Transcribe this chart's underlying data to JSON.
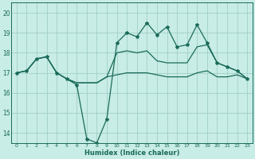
{
  "xlabel": "Humidex (Indice chaleur)",
  "x": [
    0,
    1,
    2,
    3,
    4,
    5,
    6,
    7,
    8,
    9,
    10,
    11,
    12,
    13,
    14,
    15,
    16,
    17,
    18,
    19,
    20,
    21,
    22,
    23
  ],
  "line_top": [
    17.0,
    17.1,
    17.7,
    17.8,
    17.0,
    16.7,
    16.4,
    13.7,
    13.5,
    14.7,
    18.5,
    19.0,
    18.8,
    19.5,
    18.9,
    19.3,
    18.3,
    18.4,
    19.4,
    18.5,
    17.5,
    17.3,
    17.1,
    16.7
  ],
  "line_mid": [
    17.0,
    17.1,
    17.7,
    17.8,
    17.0,
    16.7,
    16.5,
    16.5,
    16.5,
    16.8,
    18.0,
    18.1,
    18.0,
    18.1,
    17.6,
    17.5,
    17.5,
    17.5,
    18.3,
    18.4,
    17.5,
    17.3,
    17.1,
    16.7
  ],
  "line_bot": [
    17.0,
    17.1,
    17.7,
    17.8,
    17.0,
    16.7,
    16.5,
    16.5,
    16.5,
    16.8,
    16.9,
    17.0,
    17.0,
    17.0,
    16.9,
    16.8,
    16.8,
    16.8,
    17.0,
    17.1,
    16.8,
    16.8,
    16.9,
    16.7
  ],
  "bg_color": "#c8ece6",
  "grid_color": "#a0d0c8",
  "line_color": "#1a6b5a",
  "ylim": [
    13.5,
    20.5
  ],
  "yticks": [
    14,
    15,
    16,
    17,
    18,
    19,
    20
  ],
  "xticks": [
    0,
    1,
    2,
    3,
    4,
    5,
    6,
    7,
    8,
    9,
    10,
    11,
    12,
    13,
    14,
    15,
    16,
    17,
    18,
    19,
    20,
    21,
    22,
    23
  ]
}
